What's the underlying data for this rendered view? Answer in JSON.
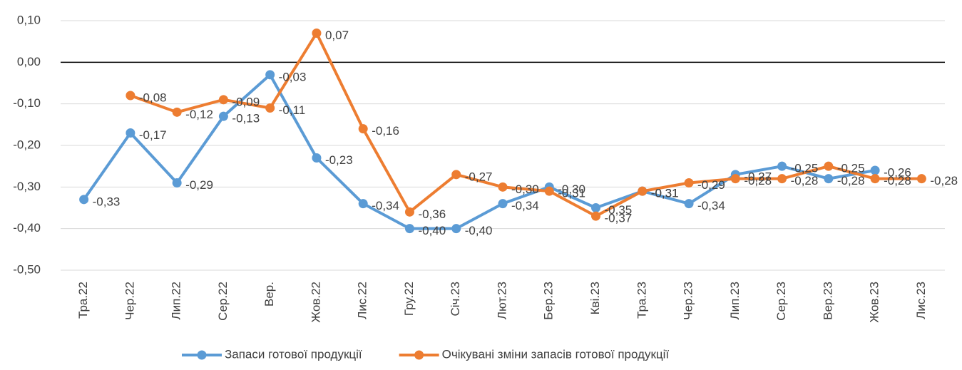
{
  "chart_data": {
    "type": "line",
    "categories": [
      "Тра.22",
      "Чер.22",
      "Лип.22",
      "Сер.22",
      "Вер.",
      "Жов.22",
      "Лис.22",
      "Гру.22",
      "Січ.23",
      "Лют.23",
      "Бер.23",
      "Кві.23",
      "Тра.23",
      "Чер.23",
      "Лип.23",
      "Сер.23",
      "Вер.23",
      "Жов.23",
      "Лис.23"
    ],
    "series": [
      {
        "name": "Запаси готової продукції",
        "color": "#5b9bd5",
        "values": [
          -0.33,
          -0.17,
          -0.29,
          -0.13,
          -0.03,
          -0.23,
          -0.34,
          -0.4,
          -0.4,
          -0.34,
          -0.3,
          -0.35,
          -0.31,
          -0.34,
          -0.27,
          -0.25,
          -0.28,
          -0.26,
          null
        ],
        "value_labels": [
          "-0,33",
          "-0,17",
          "-0,29",
          "-0,13",
          "-0,03",
          "-0,23",
          "-0,34",
          "-0,40",
          "-0,40",
          "-0,34",
          "-0,30",
          "-0,35",
          "-0,31",
          "-0,34",
          "-0,27",
          "-0,25",
          "-0,28",
          "-0,26",
          null
        ]
      },
      {
        "name": "Очікувані зміни запасів готової продукції",
        "color": "#ed7d31",
        "values": [
          null,
          -0.08,
          -0.12,
          -0.09,
          -0.11,
          0.07,
          -0.16,
          -0.36,
          -0.27,
          -0.3,
          -0.31,
          -0.37,
          -0.31,
          -0.29,
          -0.28,
          -0.28,
          -0.25,
          -0.28,
          -0.28
        ],
        "value_labels": [
          null,
          "-0,08",
          "-0,12",
          "-0,09",
          "-0,11",
          "0,07",
          "-0,16",
          "-0,36",
          "-0,27",
          "-0,30",
          "-0,31",
          "-0,37",
          "-0,31",
          "-0,29",
          "-0,28",
          "-0,28",
          "-0,25",
          "-0,28",
          "-0,28"
        ]
      }
    ],
    "ylim": [
      -0.5,
      0.1
    ],
    "yticks": [
      {
        "value": 0.1,
        "label": "0,10"
      },
      {
        "value": 0,
        "label": "0,00"
      },
      {
        "value": -0.1,
        "label": "-0,10"
      },
      {
        "value": -0.2,
        "label": "-0,20"
      },
      {
        "value": -0.3,
        "label": "-0,30"
      },
      {
        "value": -0.4,
        "label": "-0,40"
      },
      {
        "value": -0.5,
        "label": "-0,50"
      }
    ],
    "grid": true,
    "legend": "bottom"
  }
}
